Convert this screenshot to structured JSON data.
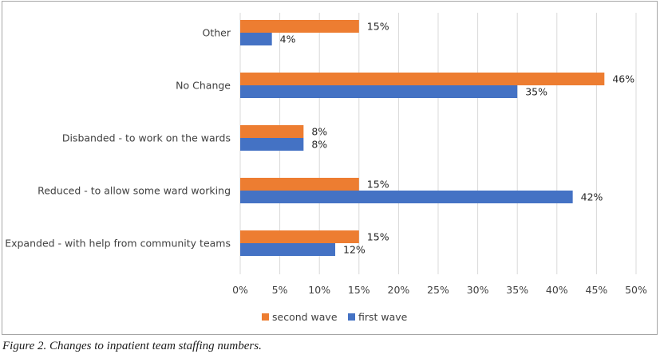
{
  "chart_data": {
    "type": "bar",
    "orientation": "horizontal",
    "categories": [
      "Other",
      "No Change",
      "Disbanded - to work on the wards",
      "Reduced - to allow some ward working",
      "Expanded - with help from community teams"
    ],
    "series": [
      {
        "name": "second wave",
        "color": "#ed7d31",
        "values": [
          15,
          46,
          8,
          15,
          15
        ]
      },
      {
        "name": "first wave",
        "color": "#4472c4",
        "values": [
          4,
          35,
          8,
          42,
          12
        ]
      }
    ],
    "data_labels": {
      "second wave": [
        "15%",
        "46%",
        "8%",
        "15%",
        "15%"
      ],
      "first wave": [
        "4%",
        "35%",
        "8%",
        "42%",
        "12%"
      ]
    },
    "x_ticks": [
      "0%",
      "5%",
      "10%",
      "15%",
      "20%",
      "25%",
      "30%",
      "35%",
      "40%",
      "45%",
      "50%"
    ],
    "xlim": [
      0,
      50
    ],
    "grid": true,
    "legend_position": "bottom"
  },
  "caption": "Figure 2. Changes to inpatient team staffing numbers."
}
